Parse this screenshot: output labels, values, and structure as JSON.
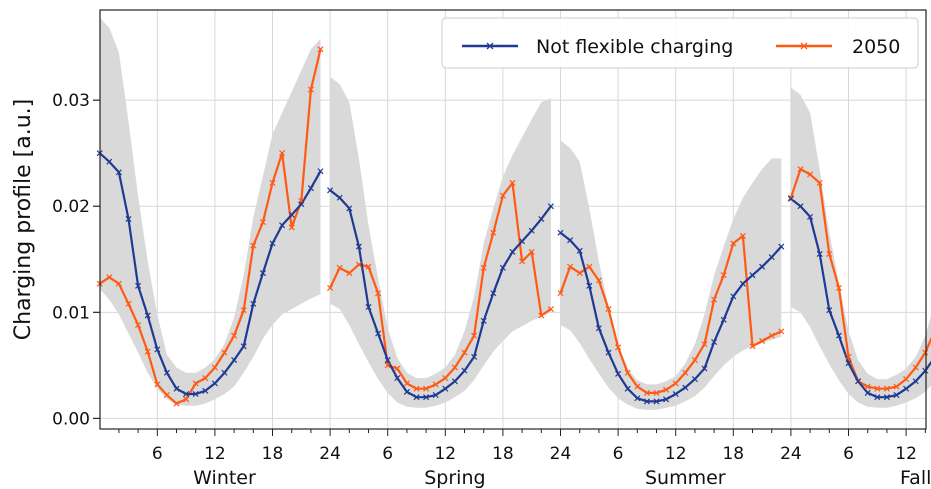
{
  "chart_data": {
    "type": "line",
    "title": "",
    "ylabel": "Charging profile [a.u.]",
    "xlabel": "",
    "ylim": [
      -0.001,
      0.0385
    ],
    "yticks": [
      "0.00",
      "0.01",
      "0.02",
      "0.03"
    ],
    "yticks_values": [
      0.0,
      0.01,
      0.02,
      0.03
    ],
    "xtick_labels": [
      "6",
      "12",
      "18",
      "24"
    ],
    "grid": true,
    "legend_position": "top-right",
    "colors": {
      "not_flexible": "#1f3a93",
      "scenario_2050": "#ff5a14",
      "band": "#d9d9d9"
    },
    "seasons": [
      {
        "label": "Winter",
        "not_flexible": [
          0.025,
          0.0242,
          0.0232,
          0.0188,
          0.0125,
          0.0097,
          0.0065,
          0.0043,
          0.0028,
          0.0023,
          0.0023,
          0.0026,
          0.0033,
          0.0043,
          0.0055,
          0.0068,
          0.0108,
          0.0137,
          0.0165,
          0.0182,
          0.0192,
          0.0202,
          0.0217,
          0.0233
        ],
        "scenario_2050": [
          0.0127,
          0.0133,
          0.0127,
          0.0108,
          0.0088,
          0.0063,
          0.0032,
          0.0022,
          0.0014,
          0.0018,
          0.0033,
          0.0038,
          0.0048,
          0.0062,
          0.0078,
          0.0102,
          0.0163,
          0.0185,
          0.0222,
          0.025,
          0.018,
          0.0205,
          0.031,
          0.0348
        ],
        "band_upper": [
          0.0378,
          0.0368,
          0.0345,
          0.028,
          0.021,
          0.0148,
          0.0098,
          0.006,
          0.0048,
          0.0043,
          0.0043,
          0.0048,
          0.0056,
          0.007,
          0.0095,
          0.0135,
          0.019,
          0.0228,
          0.0268,
          0.0288,
          0.0308,
          0.0328,
          0.0348,
          0.0358
        ],
        "band_lower": [
          0.0122,
          0.0112,
          0.0098,
          0.008,
          0.0062,
          0.0043,
          0.0028,
          0.0018,
          0.0013,
          0.0012,
          0.0012,
          0.0014,
          0.0018,
          0.0023,
          0.003,
          0.0043,
          0.0058,
          0.0075,
          0.0088,
          0.0098,
          0.0103,
          0.0108,
          0.0113,
          0.0117
        ]
      },
      {
        "label": "Spring",
        "not_flexible": [
          0.0215,
          0.0208,
          0.0198,
          0.0162,
          0.0105,
          0.008,
          0.0055,
          0.0038,
          0.0025,
          0.002,
          0.002,
          0.0022,
          0.0028,
          0.0035,
          0.0045,
          0.0058,
          0.0092,
          0.0118,
          0.0142,
          0.0157,
          0.0167,
          0.0177,
          0.0188,
          0.02
        ],
        "scenario_2050": [
          0.0123,
          0.0142,
          0.0137,
          0.0145,
          0.0143,
          0.0118,
          0.005,
          0.0047,
          0.0033,
          0.0028,
          0.0028,
          0.0032,
          0.0038,
          0.0048,
          0.0062,
          0.0078,
          0.0142,
          0.0175,
          0.021,
          0.0222,
          0.0148,
          0.0157,
          0.0097,
          0.0103
        ],
        "band_upper": [
          0.0322,
          0.0315,
          0.0298,
          0.0245,
          0.0182,
          0.0132,
          0.0085,
          0.0057,
          0.0043,
          0.0038,
          0.0038,
          0.0042,
          0.0048,
          0.006,
          0.0082,
          0.0115,
          0.0165,
          0.0198,
          0.0228,
          0.0248,
          0.0265,
          0.0282,
          0.0298,
          0.0302
        ],
        "band_lower": [
          0.0108,
          0.0103,
          0.0088,
          0.007,
          0.0053,
          0.0037,
          0.0024,
          0.0015,
          0.0011,
          0.001,
          0.001,
          0.0012,
          0.0015,
          0.002,
          0.0026,
          0.0036,
          0.005,
          0.0063,
          0.0073,
          0.0082,
          0.0087,
          0.0092,
          0.0096,
          0.01
        ]
      },
      {
        "label": "Summer",
        "not_flexible": [
          0.0175,
          0.0168,
          0.0158,
          0.0125,
          0.0085,
          0.0062,
          0.0042,
          0.0028,
          0.0019,
          0.0016,
          0.0016,
          0.0018,
          0.0023,
          0.0029,
          0.0037,
          0.0047,
          0.0072,
          0.0093,
          0.0115,
          0.0127,
          0.0135,
          0.0143,
          0.0152,
          0.0162
        ],
        "scenario_2050": [
          0.0118,
          0.0143,
          0.0137,
          0.0143,
          0.013,
          0.0103,
          0.0067,
          0.0043,
          0.003,
          0.0024,
          0.0024,
          0.0027,
          0.0033,
          0.0043,
          0.0055,
          0.007,
          0.0112,
          0.0135,
          0.0165,
          0.0172,
          0.0068,
          0.0073,
          0.0078,
          0.0082
        ],
        "band_upper": [
          0.0262,
          0.0255,
          0.0242,
          0.0198,
          0.0148,
          0.0105,
          0.0068,
          0.0047,
          0.0036,
          0.0032,
          0.0032,
          0.0035,
          0.004,
          0.0052,
          0.007,
          0.0098,
          0.0135,
          0.0162,
          0.0188,
          0.0208,
          0.0222,
          0.0235,
          0.0245,
          0.0245
        ],
        "band_lower": [
          0.0088,
          0.0083,
          0.0071,
          0.0056,
          0.0042,
          0.0029,
          0.0019,
          0.0013,
          0.0009,
          0.0008,
          0.0008,
          0.001,
          0.0012,
          0.0016,
          0.0021,
          0.0029,
          0.004,
          0.005,
          0.0058,
          0.0064,
          0.0068,
          0.0071,
          0.0074,
          0.0077
        ]
      },
      {
        "label": "Fall",
        "not_flexible": [
          0.0207,
          0.02,
          0.019,
          0.0155,
          0.0102,
          0.0078,
          0.0052,
          0.0035,
          0.0024,
          0.002,
          0.002,
          0.0022,
          0.0028,
          0.0035,
          0.0045,
          0.0058,
          0.009,
          0.0112,
          0.0138,
          0.015,
          0.0158,
          0.0168,
          0.018,
          0.0193
        ],
        "scenario_2050": [
          0.0208,
          0.0235,
          0.023,
          0.0222,
          0.0155,
          0.0123,
          0.0058,
          0.0035,
          0.003,
          0.0028,
          0.0028,
          0.003,
          0.0037,
          0.0048,
          0.0062,
          0.0083,
          0.0132,
          0.0125,
          0.0093,
          0.0093,
          0.0088,
          0.0098,
          0.0092,
          0.0128
        ],
        "band_upper": [
          0.0312,
          0.0305,
          0.0288,
          0.0235,
          0.0175,
          0.0128,
          0.0082,
          0.0055,
          0.0042,
          0.0037,
          0.0037,
          0.0041,
          0.0047,
          0.0058,
          0.0078,
          0.011,
          0.0158,
          0.021,
          0.0225,
          0.0238,
          0.0252,
          0.0268,
          0.0285,
          0.0292
        ],
        "band_lower": [
          0.0105,
          0.01,
          0.0086,
          0.0068,
          0.0051,
          0.0036,
          0.0023,
          0.0015,
          0.0011,
          0.001,
          0.001,
          0.0012,
          0.0015,
          0.0019,
          0.0025,
          0.0035,
          0.0048,
          0.006,
          0.007,
          0.0078,
          0.0083,
          0.0088,
          0.0093,
          0.0097
        ]
      }
    ],
    "legend": [
      {
        "key": "not_flexible",
        "label": "Not flexible charging"
      },
      {
        "key": "scenario_2050",
        "label": "2050"
      }
    ]
  }
}
